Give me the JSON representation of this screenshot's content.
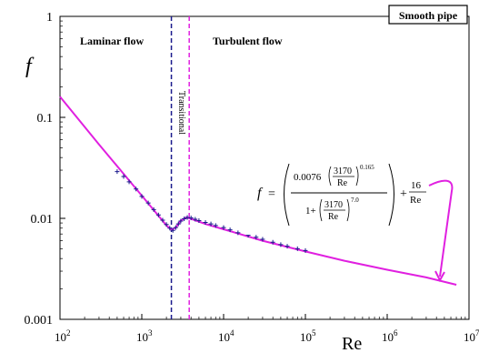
{
  "chart_data": {
    "type": "line",
    "x_scale": "log",
    "y_scale": "log",
    "xlim": [
      100,
      10000000
    ],
    "ylim": [
      0.001,
      1
    ],
    "xlabel": "Re",
    "ylabel": "f",
    "x_tick_labels": [
      {
        "base": "10",
        "exp": "2"
      },
      {
        "base": "10",
        "exp": "3"
      },
      {
        "base": "10",
        "exp": "4"
      },
      {
        "base": "10",
        "exp": "5"
      },
      {
        "base": "10",
        "exp": "6"
      },
      {
        "base": "10",
        "exp": "7"
      }
    ],
    "y_tick_labels": [
      "1",
      "0.1",
      "0.01",
      "0.001"
    ],
    "grid": false,
    "legend_box": "Smooth pipe",
    "regions": {
      "laminar": "Laminar flow",
      "turbulent": "Turbulent flow",
      "transitional": "Transitional"
    },
    "boundaries": [
      {
        "x": 2300,
        "color": "#1a1a8c"
      },
      {
        "x": 3800,
        "color": "#e020e0"
      }
    ],
    "model_line": {
      "color": "#e020e0",
      "points": [
        [
          100,
          0.16
        ],
        [
          300,
          0.054
        ],
        [
          1000,
          0.0168
        ],
        [
          2000,
          0.0085
        ],
        [
          2300,
          0.0077
        ],
        [
          2600,
          0.0081
        ],
        [
          3000,
          0.0095
        ],
        [
          3500,
          0.0102
        ],
        [
          4000,
          0.0099
        ],
        [
          6000,
          0.0088
        ],
        [
          10000,
          0.0078
        ],
        [
          30000,
          0.006
        ],
        [
          100000,
          0.0047
        ],
        [
          300000,
          0.0038
        ],
        [
          1000000,
          0.0031
        ],
        [
          3000000,
          0.0026
        ],
        [
          7000000,
          0.0022
        ]
      ]
    },
    "experimental": {
      "color": "#1a1a8c",
      "marker": "+",
      "points": [
        [
          500,
          0.029
        ],
        [
          600,
          0.026
        ],
        [
          700,
          0.023
        ],
        [
          850,
          0.0195
        ],
        [
          1000,
          0.0165
        ],
        [
          1200,
          0.0142
        ],
        [
          1400,
          0.0122
        ],
        [
          1600,
          0.0108
        ],
        [
          1800,
          0.0096
        ],
        [
          2000,
          0.0087
        ],
        [
          2200,
          0.008
        ],
        [
          2400,
          0.0076
        ],
        [
          2600,
          0.0081
        ],
        [
          2800,
          0.0088
        ],
        [
          3000,
          0.0094
        ],
        [
          3300,
          0.0099
        ],
        [
          3600,
          0.0102
        ],
        [
          4000,
          0.0101
        ],
        [
          4500,
          0.0098
        ],
        [
          5000,
          0.0095
        ],
        [
          6000,
          0.0091
        ],
        [
          7000,
          0.0088
        ],
        [
          8000,
          0.0085
        ],
        [
          10000,
          0.0081
        ],
        [
          12000,
          0.0077
        ],
        [
          15000,
          0.0072
        ],
        [
          20000,
          0.0068
        ],
        [
          25000,
          0.0065
        ],
        [
          30000,
          0.0062
        ],
        [
          40000,
          0.0058
        ],
        [
          50000,
          0.0055
        ],
        [
          60000,
          0.0053
        ],
        [
          80000,
          0.005
        ],
        [
          100000,
          0.0048
        ]
      ]
    },
    "equation": {
      "f": "f",
      "eq": "=",
      "c1": "0.0076",
      "n1": "3170",
      "d1": "Re",
      "e1": "0.165",
      "one": "1+",
      "n2": "3170",
      "d2": "Re",
      "e2": "7.0",
      "plus": "+",
      "n3": "16",
      "d3": "Re"
    }
  }
}
